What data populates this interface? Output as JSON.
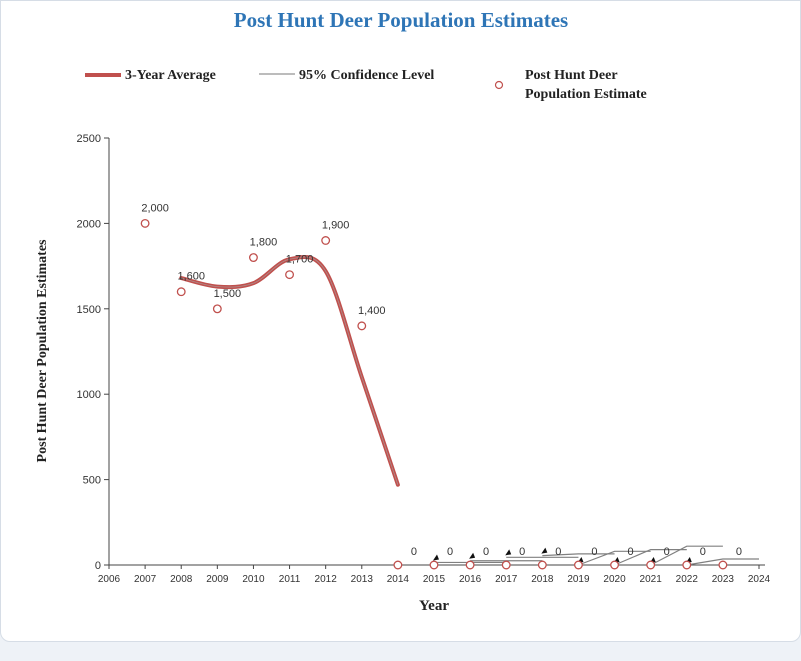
{
  "chart_data": {
    "type": "line",
    "title": "Post Hunt Deer Population Estimates",
    "xlabel": "Year",
    "ylabel": "Post Hunt Deer Population Estimates",
    "xlim": [
      2006,
      2024
    ],
    "ylim": [
      0,
      2500
    ],
    "x_ticks": [
      2006,
      2007,
      2008,
      2009,
      2010,
      2011,
      2012,
      2013,
      2014,
      2015,
      2016,
      2017,
      2018,
      2019,
      2020,
      2021,
      2022,
      2023,
      2024
    ],
    "y_ticks": [
      0,
      500,
      1000,
      1500,
      2000,
      2500
    ],
    "grid": false,
    "legend_position": "top",
    "legend": [
      {
        "name": "3-Year Average",
        "color": "#c0504d",
        "symbol": "thick-line"
      },
      {
        "name": "95% Confidence Level",
        "color": "#a6a6a6",
        "symbol": "thin-line"
      },
      {
        "name": "Post Hunt Deer Population Estimate",
        "color": "#c0504d",
        "symbol": "open-circle"
      }
    ],
    "series": [
      {
        "name": "Post Hunt Deer Population Estimate",
        "kind": "points",
        "color": "#c0504d",
        "x": [
          2007,
          2008,
          2009,
          2010,
          2011,
          2012,
          2013,
          2014,
          2015,
          2016,
          2017,
          2018,
          2019,
          2020,
          2021,
          2022,
          2023
        ],
        "y": [
          2000,
          1600,
          1500,
          1800,
          1700,
          1900,
          1400,
          0,
          0,
          0,
          0,
          0,
          0,
          0,
          0,
          0,
          0
        ],
        "labels": [
          "2,000",
          "1,600",
          "1,500",
          "1,800",
          "1,700",
          "1,900",
          "1,400",
          "0",
          "0",
          "0",
          "0",
          "0",
          "0",
          "0",
          "0",
          "0",
          "0"
        ]
      },
      {
        "name": "3-Year Average",
        "kind": "smooth-line",
        "color": "#c0504d",
        "x": [
          2008,
          2009,
          2010,
          2011,
          2012,
          2013,
          2014
        ],
        "y": [
          1680,
          1630,
          1650,
          1790,
          1720,
          1100,
          470
        ]
      },
      {
        "name": "95% Confidence Level",
        "kind": "segments",
        "color": "#808080",
        "segments": [
          {
            "x": [
              2015,
              2016,
              2017
            ],
            "y": [
              15,
              15,
              15
            ]
          },
          {
            "x": [
              2016,
              2017,
              2018
            ],
            "y": [
              25,
              25,
              25
            ]
          },
          {
            "x": [
              2017,
              2018,
              2019
            ],
            "y": [
              45,
              45,
              45
            ]
          },
          {
            "x": [
              2018,
              2019,
              2020
            ],
            "y": [
              55,
              65,
              65
            ]
          },
          {
            "x": [
              2019,
              2020,
              2021
            ],
            "y": [
              0,
              80,
              80
            ]
          },
          {
            "x": [
              2020,
              2021,
              2022
            ],
            "y": [
              0,
              90,
              90
            ]
          },
          {
            "x": [
              2021,
              2022,
              2023
            ],
            "y": [
              0,
              110,
              110
            ]
          },
          {
            "x": [
              2022,
              2023,
              2024
            ],
            "y": [
              0,
              35,
              35
            ]
          }
        ]
      }
    ]
  }
}
